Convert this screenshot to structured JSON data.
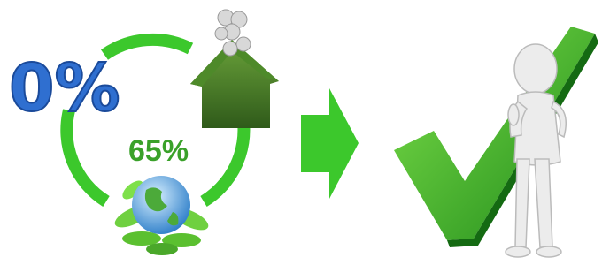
{
  "labels": {
    "zero": "0%",
    "percent": "65%"
  }
}
